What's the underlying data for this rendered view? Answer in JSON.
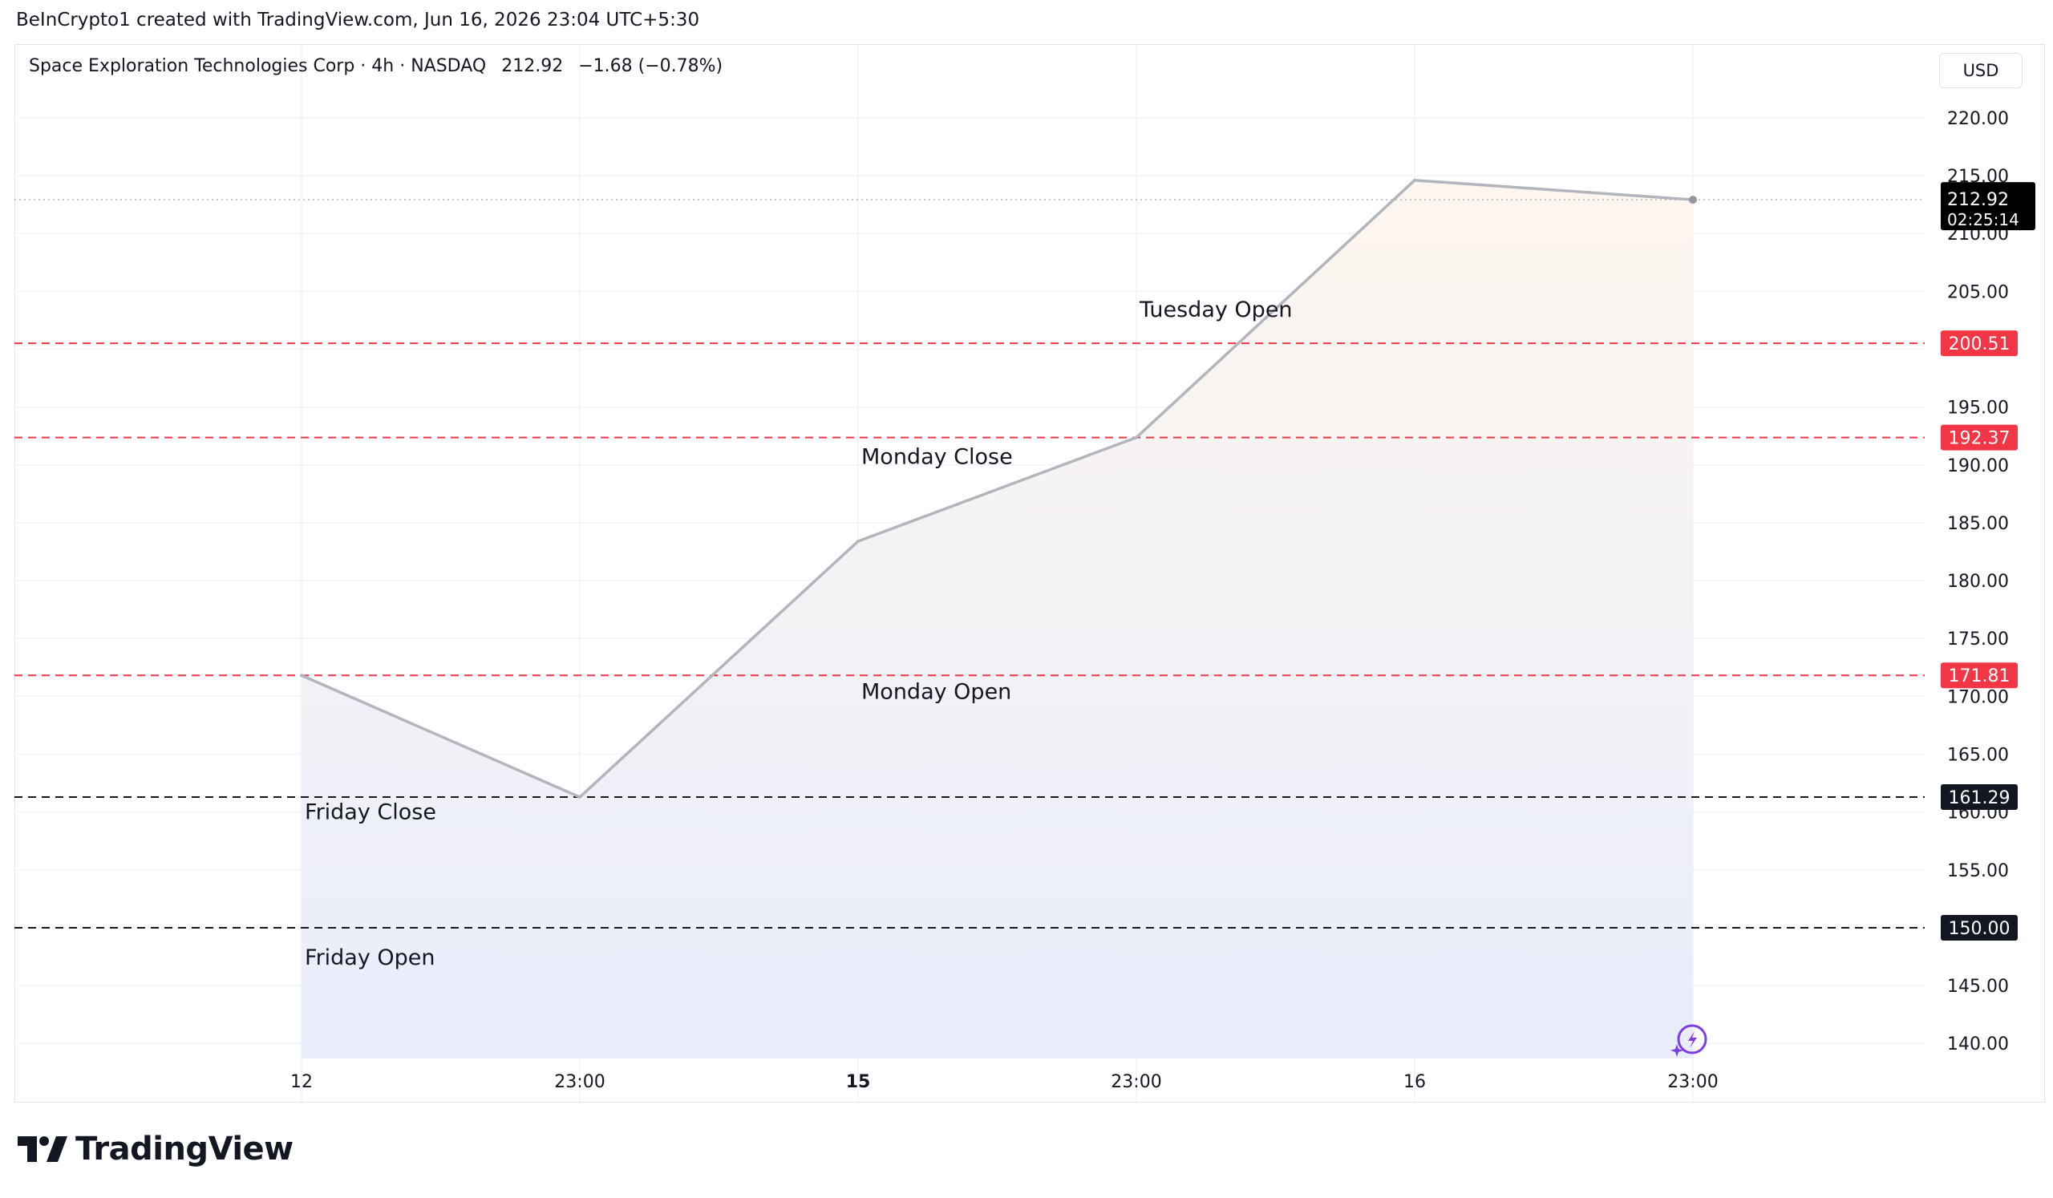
{
  "credit": "BeInCrypto1 created with TradingView.com, Jun 16, 2026 23:04 UTC+5:30",
  "legend": {
    "symbol": "Space Exploration Technologies Corp · 4h · NASDAQ",
    "price": "212.92",
    "change": "−1.68 (−0.78%)"
  },
  "currency": "USD",
  "brand": "TradingView",
  "icons": [
    "tradingview-logo-icon",
    "spark-lightning-icon"
  ],
  "colors": {
    "line": "#b2b5be",
    "red_level": "#f23645",
    "black_level": "#131722",
    "fill_top": "#fdf6ee",
    "fill_bottom": "#e9edfc"
  },
  "chart_data": {
    "type": "area",
    "x": [
      "12",
      "23:00",
      "15",
      "23:00",
      "16",
      "23:00"
    ],
    "series": [
      {
        "values": [
          171.81,
          161.29,
          183.4,
          192.37,
          214.6,
          212.92
        ]
      }
    ],
    "y_ticks": [
      "220.00",
      "215.00",
      "210.00",
      "205.00",
      "200.00",
      "195.00",
      "190.00",
      "185.00",
      "180.00",
      "175.00",
      "170.00",
      "165.00",
      "160.00",
      "155.00",
      "150.00",
      "145.00",
      "140.00"
    ],
    "ylim": [
      138.7,
      226.3
    ],
    "last_price": {
      "value": 212.92,
      "label": "212.92",
      "countdown": "02:25:14"
    },
    "levels": [
      {
        "value": 200.51,
        "label": "200.51",
        "color": "red"
      },
      {
        "value": 192.37,
        "label": "192.37",
        "color": "red"
      },
      {
        "value": 171.81,
        "label": "171.81",
        "color": "red"
      },
      {
        "value": 161.29,
        "label": "161.29",
        "color": "black"
      },
      {
        "value": 150.0,
        "label": "150.00",
        "color": "black"
      }
    ],
    "annotations": [
      {
        "text": "Tuesday Open",
        "x_index": 3.0,
        "value": 202.8
      },
      {
        "text": "Monday Close",
        "x_index": 2.0,
        "value": 190.1
      },
      {
        "text": "Monday Open",
        "x_index": 2.0,
        "value": 169.8
      },
      {
        "text": "Friday Close",
        "x_index": 0.0,
        "value": 159.4
      },
      {
        "text": "Friday Open",
        "x_index": 0.0,
        "value": 146.8
      }
    ],
    "grid": true,
    "legend_position": "top-left"
  }
}
